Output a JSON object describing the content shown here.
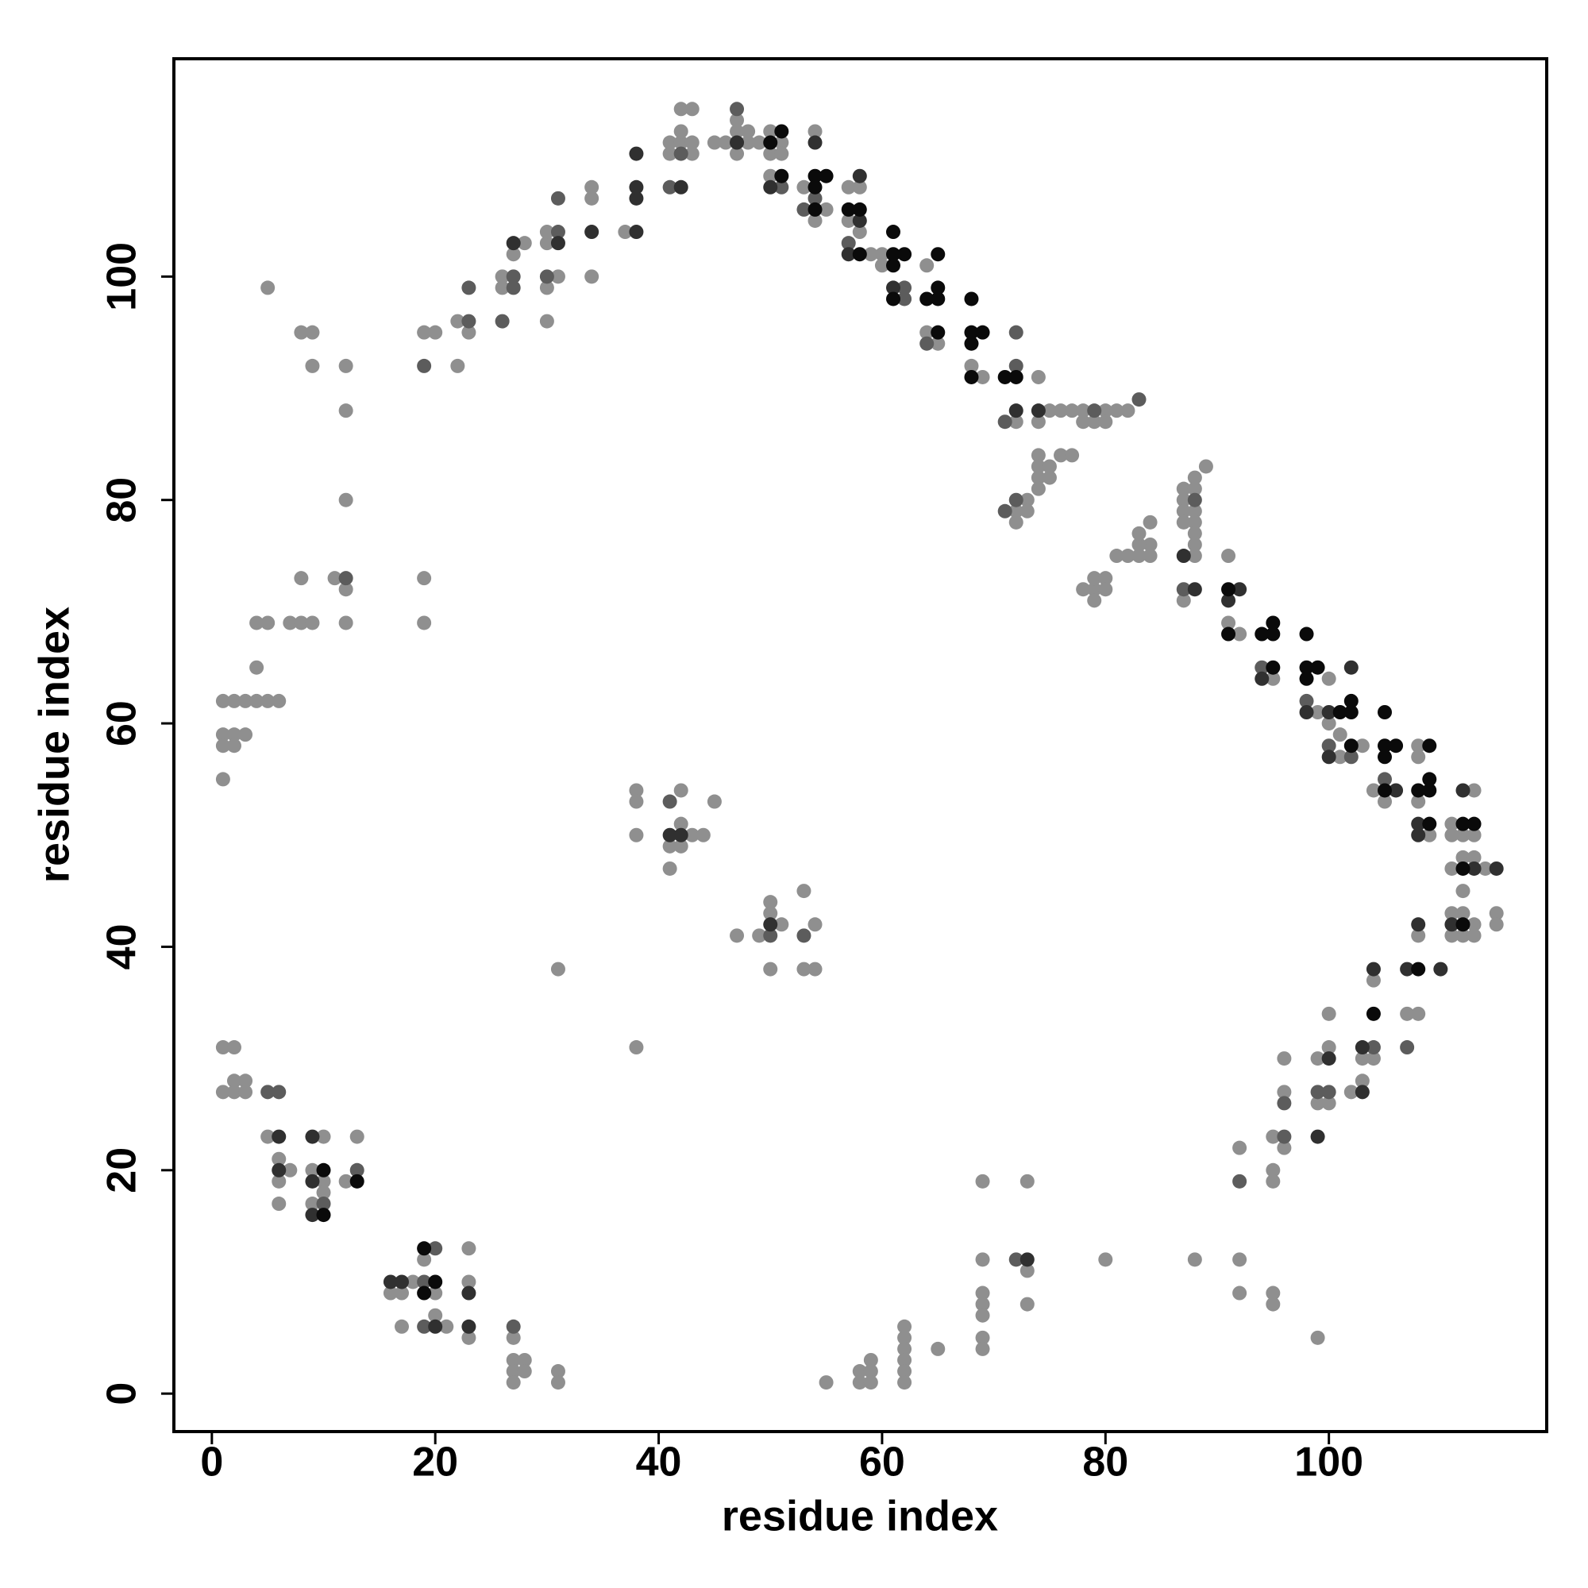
{
  "chart_data": {
    "type": "scatter",
    "xlabel": "residue index",
    "ylabel": "residue index",
    "xlim": [
      -3.4,
      119.5
    ],
    "ylim": [
      -3.4,
      119.5
    ],
    "xticks": [
      0,
      20,
      40,
      60,
      80,
      100
    ],
    "yticks": [
      0,
      20,
      40,
      60,
      80,
      100
    ],
    "series": [
      {
        "color": "#8f8f8f",
        "x": [
          5,
          8,
          9,
          9,
          12,
          12,
          12,
          8,
          11,
          12,
          12,
          19,
          19,
          4,
          5,
          7,
          8,
          9,
          4,
          1,
          2,
          3,
          4,
          5,
          6,
          1,
          2,
          3,
          1,
          2,
          1,
          19,
          20,
          22,
          22,
          23,
          26,
          26,
          27,
          28,
          30,
          30,
          31,
          30,
          30,
          34,
          34,
          34,
          37,
          41,
          41,
          42,
          43,
          43,
          42,
          42,
          43,
          45,
          46,
          47,
          47,
          48,
          47,
          48,
          49,
          50,
          51,
          50,
          51,
          50,
          53,
          54,
          55,
          54,
          57,
          58,
          57,
          58,
          59,
          60,
          60,
          64,
          64,
          65,
          68,
          69,
          72,
          74,
          74,
          75,
          76,
          77,
          78,
          78,
          79,
          80,
          80,
          81,
          82,
          74,
          74,
          74,
          75,
          76,
          77,
          75,
          74,
          72,
          73,
          73,
          72,
          83,
          82,
          84,
          84,
          83,
          83,
          84,
          81,
          87,
          87,
          87,
          87,
          88,
          88,
          88,
          88,
          88,
          88,
          89,
          88,
          87,
          78,
          79,
          79,
          79,
          80,
          80,
          91,
          91,
          92,
          95,
          99,
          100,
          100,
          101,
          101,
          103,
          104,
          105,
          108,
          108,
          108,
          109,
          111,
          111,
          113,
          112,
          113,
          112,
          113,
          111,
          112,
          114,
          108,
          111,
          112,
          113,
          112,
          111,
          113,
          115,
          115,
          107,
          108,
          104,
          103,
          104,
          103,
          102,
          100,
          100,
          99,
          99,
          100,
          96,
          96,
          95,
          96,
          95,
          95,
          92,
          92,
          92,
          95,
          95,
          99,
          88,
          80,
          73,
          69,
          69,
          73,
          73,
          69,
          69,
          69,
          69,
          69,
          65,
          62,
          62,
          62,
          62,
          62,
          62,
          59,
          58,
          59,
          58,
          59,
          55,
          38,
          38,
          38,
          42,
          42,
          41,
          42,
          43,
          44,
          45,
          41,
          38,
          31,
          47,
          49,
          50,
          50,
          51,
          50,
          53,
          54,
          53,
          54,
          1,
          2,
          1,
          2,
          3,
          2,
          3,
          5,
          6,
          7,
          6,
          6,
          10,
          9,
          10,
          10,
          9,
          12,
          13,
          16,
          17,
          18,
          20,
          19,
          20,
          21,
          17,
          23,
          23,
          23,
          27,
          27,
          28,
          27,
          28,
          27,
          31,
          31
        ],
        "values": [
          99,
          95,
          95,
          92,
          92,
          88,
          80,
          73,
          73,
          72,
          69,
          73,
          69,
          69,
          69,
          69,
          69,
          69,
          65,
          62,
          62,
          62,
          62,
          62,
          62,
          59,
          59,
          59,
          58,
          58,
          55,
          95,
          95,
          92,
          96,
          95,
          99,
          100,
          102,
          103,
          103,
          104,
          100,
          99,
          96,
          107,
          108,
          100,
          104,
          111,
          112,
          112,
          112,
          111,
          113,
          115,
          115,
          112,
          112,
          113,
          114,
          112,
          111,
          113,
          112,
          113,
          112,
          111,
          111,
          109,
          108,
          113,
          106,
          105,
          108,
          108,
          105,
          104,
          102,
          102,
          101,
          101,
          95,
          94,
          92,
          91,
          87,
          91,
          87,
          88,
          88,
          88,
          88,
          87,
          87,
          88,
          87,
          88,
          88,
          84,
          83,
          82,
          83,
          84,
          84,
          82,
          81,
          79,
          80,
          79,
          78,
          75,
          75,
          75,
          76,
          76,
          77,
          78,
          75,
          81,
          80,
          79,
          78,
          82,
          81,
          79,
          78,
          77,
          76,
          83,
          75,
          71,
          72,
          72,
          73,
          71,
          73,
          72,
          75,
          69,
          68,
          64,
          61,
          64,
          60,
          59,
          57,
          58,
          54,
          53,
          58,
          57,
          53,
          50,
          51,
          50,
          54,
          50,
          50,
          48,
          48,
          47,
          45,
          47,
          41,
          43,
          43,
          42,
          41,
          41,
          41,
          43,
          42,
          34,
          34,
          37,
          30,
          30,
          28,
          27,
          34,
          31,
          30,
          26,
          26,
          30,
          27,
          23,
          22,
          20,
          19,
          22,
          12,
          9,
          9,
          8,
          5,
          12,
          12,
          19,
          19,
          12,
          11,
          8,
          9,
          8,
          7,
          5,
          4,
          4,
          6,
          5,
          4,
          3,
          2,
          1,
          3,
          2,
          2,
          1,
          1,
          1,
          54,
          53,
          50,
          54,
          51,
          49,
          49,
          50,
          50,
          53,
          47,
          31,
          38,
          41,
          41,
          43,
          44,
          42,
          38,
          45,
          42,
          38,
          38,
          31,
          31,
          27,
          28,
          28,
          27,
          27,
          23,
          21,
          20,
          19,
          17,
          23,
          20,
          19,
          18,
          17,
          19,
          23,
          9,
          9,
          10,
          9,
          12,
          7,
          6,
          6,
          13,
          10,
          5,
          5,
          3,
          3,
          2,
          2,
          1,
          2,
          1
        ]
      },
      {
        "color": "#5c5c5c",
        "x": [
          12,
          19,
          23,
          23,
          26,
          27,
          27,
          31,
          30,
          31,
          41,
          42,
          47,
          51,
          54,
          53,
          57,
          62,
          62,
          64,
          72,
          72,
          71,
          79,
          83,
          71,
          72,
          88,
          87,
          94,
          98,
          100,
          102,
          105,
          107,
          104,
          99,
          100,
          96,
          96,
          92,
          72,
          53,
          50,
          41,
          5,
          6,
          10,
          13,
          19,
          20,
          19,
          27
        ],
        "values": [
          73,
          92,
          96,
          99,
          96,
          100,
          99,
          104,
          100,
          107,
          108,
          111,
          115,
          108,
          107,
          106,
          103,
          99,
          98,
          94,
          95,
          92,
          87,
          88,
          89,
          79,
          80,
          80,
          72,
          65,
          62,
          58,
          57,
          55,
          31,
          31,
          27,
          27,
          26,
          23,
          19,
          12,
          41,
          41,
          53,
          27,
          27,
          17,
          20,
          10,
          13,
          6,
          6
        ]
      },
      {
        "color": "#303030",
        "x": [
          27,
          31,
          34,
          38,
          38,
          38,
          38,
          42,
          47,
          50,
          54,
          58,
          58,
          57,
          61,
          72,
          74,
          87,
          88,
          92,
          91,
          94,
          98,
          100,
          102,
          100,
          106,
          108,
          108,
          112,
          113,
          115,
          108,
          111,
          110,
          107,
          104,
          103,
          103,
          100,
          99,
          6,
          6,
          9,
          9,
          9,
          16,
          17,
          20,
          23,
          23,
          73,
          42,
          41,
          50
        ],
        "values": [
          103,
          103,
          104,
          104,
          107,
          108,
          111,
          108,
          112,
          108,
          112,
          109,
          105,
          102,
          99,
          88,
          88,
          75,
          72,
          72,
          71,
          64,
          61,
          61,
          65,
          57,
          54,
          51,
          50,
          54,
          47,
          47,
          42,
          42,
          38,
          38,
          38,
          31,
          27,
          30,
          23,
          23,
          20,
          23,
          19,
          16,
          10,
          10,
          6,
          9,
          6,
          12,
          50,
          50,
          42
        ]
      },
      {
        "color": "#0a0a0a",
        "x": [
          51,
          50,
          51,
          54,
          54,
          55,
          54,
          57,
          58,
          58,
          61,
          61,
          62,
          61,
          61,
          65,
          64,
          65,
          65,
          65,
          68,
          68,
          69,
          68,
          68,
          71,
          72,
          91,
          91,
          94,
          95,
          95,
          95,
          98,
          98,
          99,
          98,
          101,
          102,
          102,
          102,
          105,
          105,
          105,
          106,
          105,
          109,
          108,
          109,
          109,
          109,
          112,
          113,
          112,
          112,
          108,
          104,
          10,
          10,
          13,
          20,
          19,
          19
        ],
        "values": [
          113,
          112,
          109,
          109,
          108,
          109,
          106,
          106,
          106,
          102,
          101,
          102,
          102,
          104,
          98,
          102,
          98,
          98,
          99,
          95,
          98,
          95,
          95,
          94,
          91,
          91,
          91,
          72,
          68,
          68,
          68,
          69,
          65,
          68,
          65,
          65,
          64,
          61,
          62,
          61,
          58,
          61,
          58,
          57,
          58,
          54,
          58,
          54,
          54,
          55,
          51,
          51,
          51,
          47,
          42,
          38,
          34,
          20,
          16,
          19,
          10,
          9,
          13
        ]
      }
    ]
  }
}
